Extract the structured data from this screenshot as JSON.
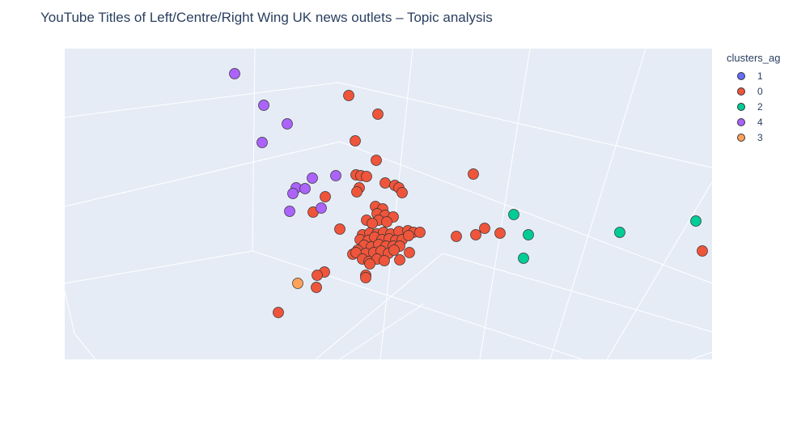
{
  "chart_data": {
    "type": "scatter",
    "title": "YouTube Titles of Left/Centre/Right Wing UK news outlets – Topic analysis",
    "legend_title": "clusters_ag",
    "legend_position": "top-right",
    "grid": true,
    "colors": {
      "background": "#e5ecf6",
      "grid": "#ffffff",
      "marker_outline": "#333333"
    },
    "series": [
      {
        "name": "1",
        "color": "#636efa",
        "points": []
      },
      {
        "name": "0",
        "color": "#ef553b",
        "points": [
          [
            431,
            118
          ],
          [
            467,
            141
          ],
          [
            439,
            174
          ],
          [
            465,
            198
          ],
          [
            585,
            215
          ],
          [
            440,
            216
          ],
          [
            446,
            217
          ],
          [
            453,
            218
          ],
          [
            476,
            226
          ],
          [
            488,
            229
          ],
          [
            444,
            232
          ],
          [
            493,
            232
          ],
          [
            441,
            237
          ],
          [
            497,
            238
          ],
          [
            402,
            243
          ],
          [
            464,
            255
          ],
          [
            473,
            258
          ],
          [
            387,
            262
          ],
          [
            466,
            264
          ],
          [
            476,
            266
          ],
          [
            486,
            268
          ],
          [
            453,
            272
          ],
          [
            468,
            272
          ],
          [
            478,
            274
          ],
          [
            460,
            276
          ],
          [
            420,
            283
          ],
          [
            599,
            282
          ],
          [
            448,
            290
          ],
          [
            457,
            288
          ],
          [
            466,
            289
          ],
          [
            474,
            287
          ],
          [
            483,
            289
          ],
          [
            493,
            286
          ],
          [
            504,
            285
          ],
          [
            511,
            287
          ],
          [
            519,
            287
          ],
          [
            588,
            290
          ],
          [
            618,
            288
          ],
          [
            564,
            292
          ],
          [
            445,
            296
          ],
          [
            455,
            297
          ],
          [
            463,
            293
          ],
          [
            472,
            296
          ],
          [
            481,
            295
          ],
          [
            489,
            297
          ],
          [
            497,
            296
          ],
          [
            505,
            291
          ],
          [
            450,
            303
          ],
          [
            459,
            305
          ],
          [
            468,
            302
          ],
          [
            477,
            304
          ],
          [
            486,
            304
          ],
          [
            494,
            304
          ],
          [
            442,
            309
          ],
          [
            452,
            313
          ],
          [
            462,
            312
          ],
          [
            471,
            310
          ],
          [
            480,
            313
          ],
          [
            487,
            309
          ],
          [
            506,
            312
          ],
          [
            436,
            314
          ],
          [
            440,
            312
          ],
          [
            448,
            320
          ],
          [
            456,
            323
          ],
          [
            466,
            320
          ],
          [
            475,
            322
          ],
          [
            494,
            321
          ],
          [
            457,
            326
          ],
          [
            401,
            336
          ],
          [
            452,
            340
          ],
          [
            392,
            340
          ],
          [
            452,
            343
          ],
          [
            391,
            355
          ],
          [
            868,
            310
          ],
          [
            344,
            386
          ]
        ]
      },
      {
        "name": "2",
        "color": "#00cc96",
        "points": [
          [
            635,
            265
          ],
          [
            653,
            290
          ],
          [
            647,
            319
          ],
          [
            766,
            287
          ],
          [
            860,
            273
          ]
        ]
      },
      {
        "name": "4",
        "color": "#ab63fa",
        "points": [
          [
            290,
            91
          ],
          [
            326,
            130
          ],
          [
            355,
            153
          ],
          [
            324,
            176
          ],
          [
            386,
            220
          ],
          [
            415,
            217
          ],
          [
            366,
            232
          ],
          [
            377,
            233
          ],
          [
            362,
            239
          ],
          [
            397,
            257
          ],
          [
            358,
            261
          ]
        ]
      },
      {
        "name": "3",
        "color": "#ffa15a",
        "points": [
          [
            368,
            350
          ]
        ]
      }
    ],
    "axes": {
      "xlabel": "",
      "ylabel": "",
      "zlabel": ""
    }
  }
}
